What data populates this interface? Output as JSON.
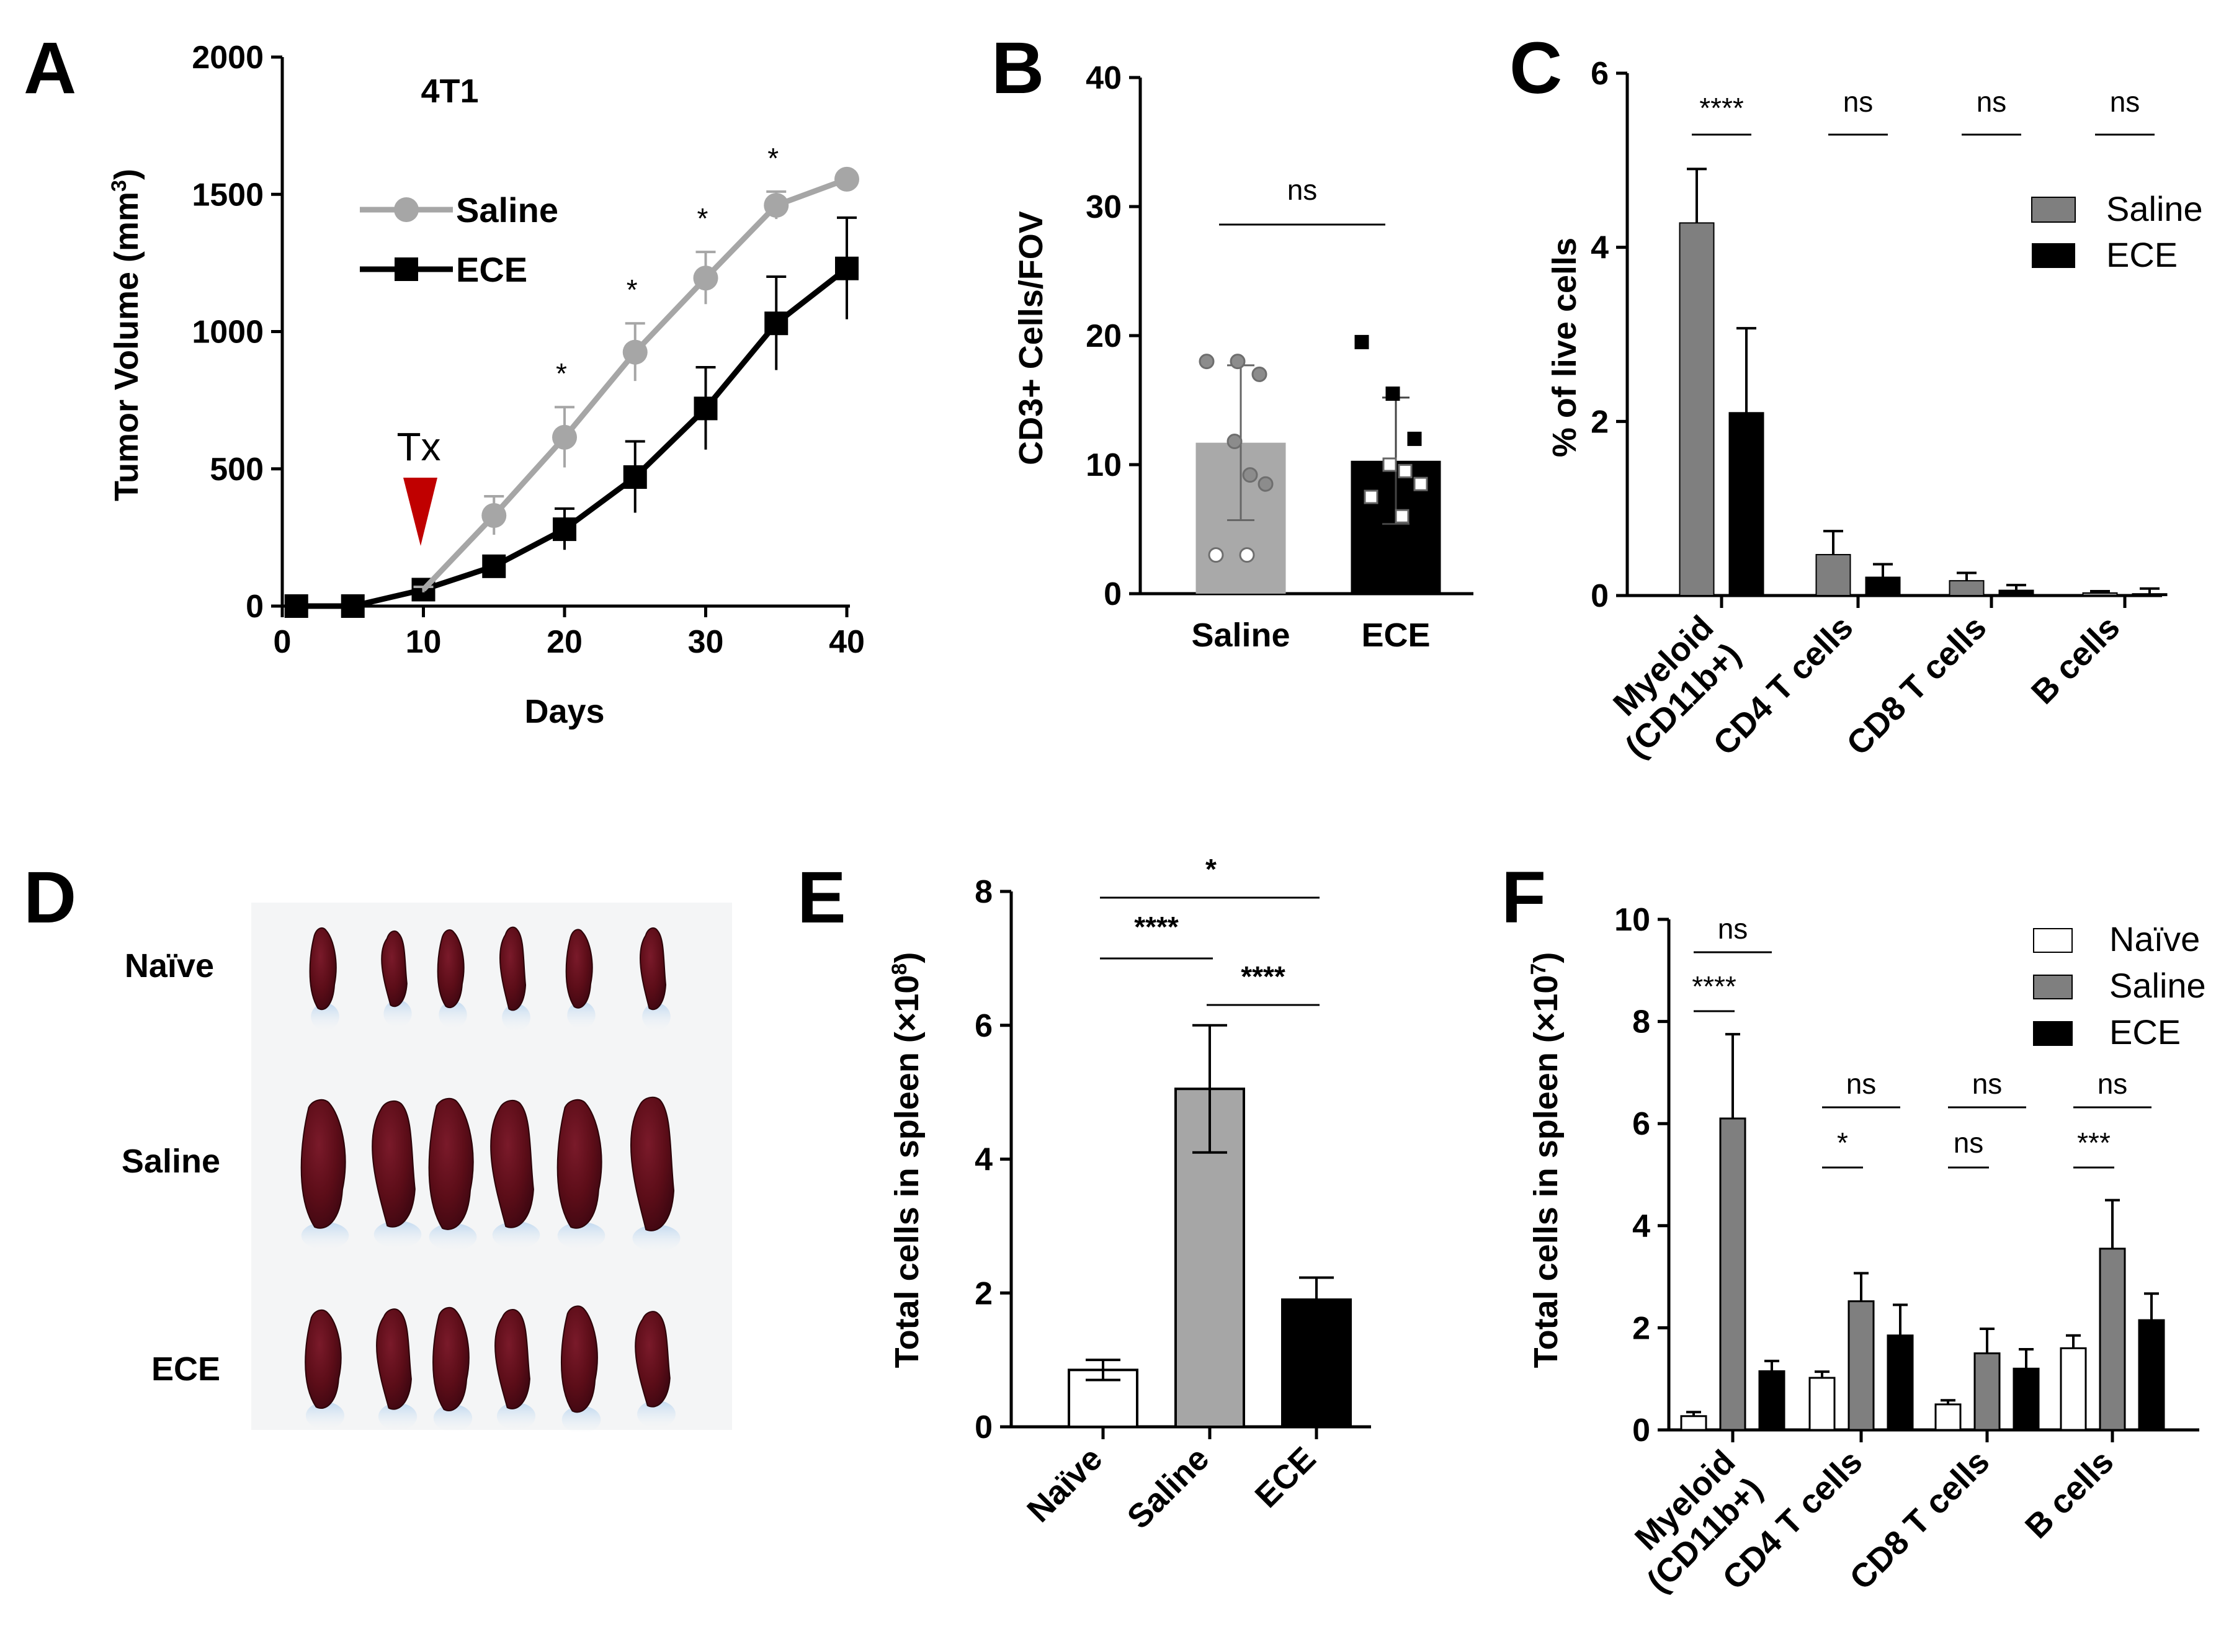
{
  "panel_labels": [
    "A",
    "B",
    "C",
    "D",
    "E",
    "F"
  ],
  "colors": {
    "saline_line": "#a6a6a6",
    "ece_line": "#000000",
    "saline_bar": "#7f7f7f",
    "saline_bar_light": "#a6a6a6",
    "ece_bar": "#000000",
    "naive_bar": "#ffffff",
    "tx_arrow": "#c00000",
    "spleen": "#5c0d18"
  },
  "chart_data": [
    {
      "id": "A",
      "type": "line",
      "title": "4T1",
      "xlabel": "Days",
      "ylabel_main": "Tumor Volume (mm",
      "ylabel_sup": "3",
      "ylabel_end": ")",
      "xlim": [
        0,
        40
      ],
      "ylim": [
        0,
        2000
      ],
      "xticks": [
        "0",
        "10",
        "20",
        "30",
        "40"
      ],
      "yticks": [
        "0",
        "500",
        "1000",
        "1500",
        "2000"
      ],
      "annotation": "Tx",
      "series": [
        {
          "name": "Saline",
          "x": [
            1,
            5,
            10,
            15,
            20,
            25,
            30,
            35,
            40
          ],
          "y": [
            0,
            0,
            60,
            330,
            615,
            925,
            1195,
            1460,
            1555
          ],
          "err": [
            0,
            0,
            10,
            70,
            110,
            105,
            95,
            50,
            20
          ],
          "sig": [
            "",
            "",
            "",
            "",
            "*",
            "*",
            "*",
            "*",
            ""
          ]
        },
        {
          "name": "ECE",
          "x": [
            1,
            5,
            10,
            15,
            20,
            25,
            30,
            35,
            40
          ],
          "y": [
            0,
            0,
            60,
            145,
            280,
            470,
            720,
            1030,
            1230
          ],
          "err": [
            0,
            0,
            10,
            35,
            75,
            130,
            150,
            170,
            185
          ]
        }
      ]
    },
    {
      "id": "B",
      "type": "bar",
      "ylabel": "CD3+ Cells/FOV",
      "ylim": [
        0,
        40
      ],
      "yticks": [
        "0",
        "10",
        "20",
        "30",
        "40"
      ],
      "categories": [
        "Saline",
        "ECE"
      ],
      "values": [
        11.7,
        10.3
      ],
      "err": [
        6.0,
        4.9
      ],
      "points": [
        [
          18,
          18,
          17,
          11.8,
          9.2,
          8.5,
          3,
          3
        ],
        [
          19.5,
          15.5,
          12,
          10,
          9.5,
          8.5,
          7.5,
          6
        ]
      ],
      "comparison": "ns"
    },
    {
      "id": "C",
      "type": "bar",
      "ylabel": "% of live cells",
      "ylim": [
        0,
        6
      ],
      "yticks": [
        "0",
        "2",
        "4",
        "6"
      ],
      "categories": [
        "Myeloid\n(CD11b+)",
        "CD4 T cells",
        "CD8 T cells",
        "B cells"
      ],
      "category_lines": [
        [
          "Myeloid",
          "(CD11b+)"
        ],
        [
          "CD4 T cells"
        ],
        [
          "CD8 T cells"
        ],
        [
          "B cells"
        ]
      ],
      "series": [
        {
          "name": "Saline",
          "values": [
            4.28,
            0.47,
            0.17,
            0.03
          ],
          "err": [
            0.62,
            0.27,
            0.09,
            0.02
          ]
        },
        {
          "name": "ECE",
          "values": [
            2.1,
            0.21,
            0.06,
            0.02
          ],
          "err": [
            0.97,
            0.15,
            0.06,
            0.06
          ]
        }
      ],
      "significance": [
        "****",
        "ns",
        "ns",
        "ns"
      ]
    },
    {
      "id": "E",
      "type": "bar",
      "ylabel_main": "Total cells in spleen (×10",
      "ylabel_sup": "8",
      "ylabel_end": ")",
      "ylim": [
        0,
        8
      ],
      "yticks": [
        "0",
        "2",
        "4",
        "6",
        "8"
      ],
      "categories": [
        "Naïve",
        "Saline",
        "ECE"
      ],
      "values": [
        0.85,
        5.05,
        1.9
      ],
      "err": [
        0.15,
        0.95,
        0.33
      ],
      "comparisons": [
        {
          "from": 0,
          "to": 2,
          "label": "*"
        },
        {
          "from": 0,
          "to": 1,
          "label": "****"
        },
        {
          "from": 1,
          "to": 2,
          "label": "****"
        }
      ]
    },
    {
      "id": "F",
      "type": "bar",
      "ylabel_main": "Total cells in spleen (×10",
      "ylabel_sup": "7",
      "ylabel_end": ")",
      "ylim": [
        0,
        10
      ],
      "yticks": [
        "0",
        "2",
        "4",
        "6",
        "8",
        "10"
      ],
      "categories": [
        "Myeloid\n(CD11b+)",
        "CD4 T cells",
        "CD8 T cells",
        "B cells"
      ],
      "category_lines": [
        [
          "Myeloid",
          "(CD11b+)"
        ],
        [
          "CD4 T cells"
        ],
        [
          "CD8 T cells"
        ],
        [
          "B cells"
        ]
      ],
      "series": [
        {
          "name": "Naïve",
          "values": [
            0.27,
            1.02,
            0.5,
            1.6
          ],
          "err": [
            0.08,
            0.12,
            0.08,
            0.25
          ]
        },
        {
          "name": "Saline",
          "values": [
            6.1,
            2.52,
            1.5,
            3.55
          ],
          "err": [
            1.65,
            0.55,
            0.48,
            0.95
          ]
        },
        {
          "name": "ECE",
          "values": [
            1.15,
            1.85,
            1.2,
            2.15
          ],
          "err": [
            0.2,
            0.6,
            0.38,
            0.52
          ]
        }
      ],
      "significance_top": [
        "ns",
        "ns",
        "ns",
        "ns"
      ],
      "significance_bottom": [
        "****",
        "*",
        "ns",
        "***"
      ]
    }
  ],
  "panel_D": {
    "row_labels": [
      "Naïve",
      "Saline",
      "ECE"
    ],
    "counts": [
      6,
      6,
      6
    ]
  }
}
